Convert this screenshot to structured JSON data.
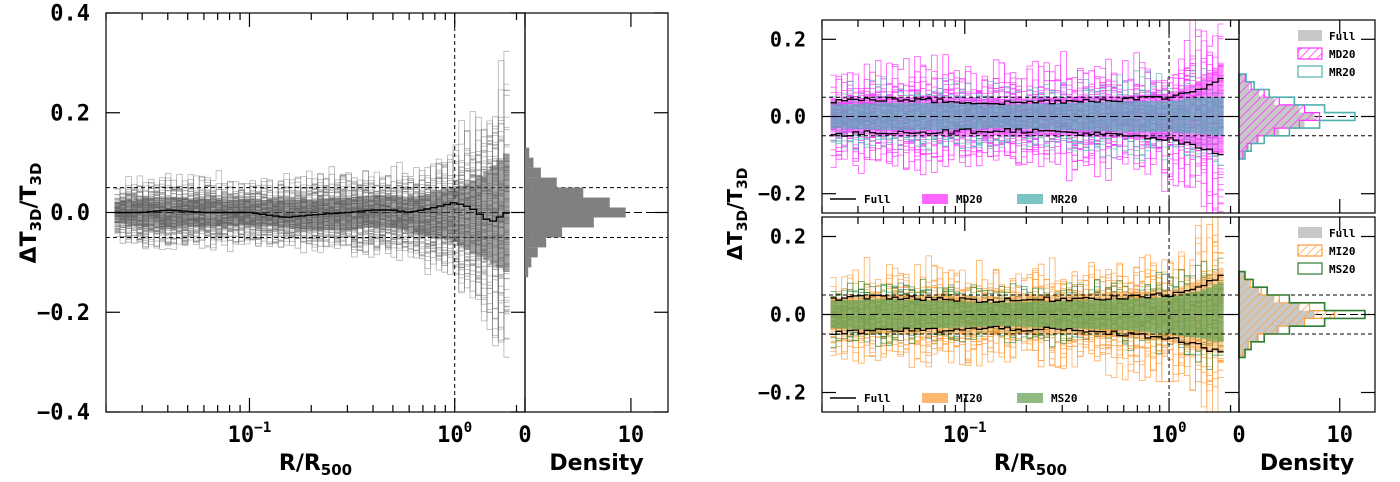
{
  "colors": {
    "full": "#808080",
    "full_hist": "#c8c8c8",
    "md20": "#ff33ff",
    "mr20": "#4fb0b0",
    "mi20": "#ffa040",
    "ms20": "#2e7d32",
    "ms20_fill": "#6aa45a"
  },
  "chart_data": [
    {
      "id": "left",
      "type": "line",
      "xscale": "log",
      "xlim": [
        0.02,
        2.2
      ],
      "ylim": [
        -0.4,
        0.4
      ],
      "ylabel": "ΔT3D/T3D",
      "xlabel": "R/R500",
      "yticks": [
        "0.4",
        "0.2",
        "0.0",
        "−0.2",
        "−0.4"
      ],
      "xticks": [
        {
          "base": "10",
          "exp": "−1"
        },
        {
          "base": "10",
          "exp": "0"
        }
      ],
      "hlines": [
        0.05,
        -0.05
      ],
      "vline": 1.0,
      "series": [
        {
          "x": [
            0.022,
            0.03,
            0.04,
            0.06,
            0.08,
            0.1,
            0.15,
            0.2,
            0.3,
            0.4,
            0.5,
            0.6,
            0.8,
            1.0,
            1.2,
            1.5,
            1.8
          ],
          "median": [
            0.0,
            0.0,
            0.005,
            0.0,
            0.0,
            0.0,
            -0.01,
            -0.005,
            0.0,
            0.005,
            0.005,
            0.0,
            0.01,
            0.02,
            0.01,
            -0.02,
            0.0
          ],
          "upper": [
            0.02,
            0.03,
            0.03,
            0.028,
            0.026,
            0.026,
            0.024,
            0.026,
            0.03,
            0.035,
            0.035,
            0.03,
            0.04,
            0.05,
            0.06,
            0.09,
            0.12
          ],
          "lower": [
            -0.02,
            -0.03,
            -0.03,
            -0.028,
            -0.026,
            -0.026,
            -0.03,
            -0.035,
            -0.035,
            -0.03,
            -0.03,
            -0.04,
            -0.05,
            -0.06,
            -0.08,
            -0.1,
            -0.12
          ]
        }
      ],
      "density": {
        "xlabel": "Density",
        "xlim": [
          0,
          13.5
        ],
        "xticks": [
          "0",
          "10"
        ],
        "bins": [
          -0.13,
          -0.11,
          -0.09,
          -0.07,
          -0.05,
          -0.03,
          -0.01,
          0.01,
          0.03,
          0.05,
          0.07,
          0.09,
          0.11,
          0.13
        ],
        "values": [
          0.3,
          0.6,
          1.2,
          2.0,
          3.5,
          6.5,
          9.5,
          8.0,
          5.5,
          3.0,
          1.5,
          0.8,
          0.4
        ]
      }
    },
    {
      "id": "right-top",
      "type": "line",
      "xscale": "log",
      "xlim": [
        0.02,
        2.2
      ],
      "ylim": [
        -0.25,
        0.25
      ],
      "ylabel": "ΔT3D/T3D",
      "yticks": [
        "0.2",
        "0.0",
        "−0.2"
      ],
      "hlines": [
        0.05,
        -0.05
      ],
      "vline": 1.0,
      "bottom_legend": [
        "Full",
        "MD20",
        "MR20"
      ],
      "hist_legend": [
        "Full",
        "MD20",
        "MR20"
      ],
      "series": [
        {
          "name": "MD20",
          "x": [
            0.022,
            0.04,
            0.08,
            0.15,
            0.3,
            0.6,
            1.0,
            1.4,
            1.8
          ],
          "upper": [
            0.04,
            0.05,
            0.05,
            0.045,
            0.05,
            0.055,
            0.06,
            0.09,
            0.14
          ],
          "lower": [
            -0.04,
            -0.05,
            -0.05,
            -0.05,
            -0.05,
            -0.055,
            -0.06,
            -0.08,
            -0.1
          ]
        },
        {
          "name": "MR20",
          "x": [
            0.022,
            0.04,
            0.08,
            0.15,
            0.3,
            0.6,
            1.0,
            1.4,
            1.8
          ],
          "upper": [
            0.03,
            0.035,
            0.035,
            0.03,
            0.035,
            0.04,
            0.04,
            0.05,
            0.05
          ],
          "lower": [
            -0.03,
            -0.035,
            -0.035,
            -0.03,
            -0.035,
            -0.04,
            -0.04,
            -0.045,
            -0.05
          ]
        },
        {
          "name": "Full",
          "x": [
            0.022,
            0.04,
            0.08,
            0.15,
            0.3,
            0.6,
            1.0,
            1.4,
            1.8
          ],
          "upper": [
            0.04,
            0.045,
            0.04,
            0.035,
            0.04,
            0.045,
            0.05,
            0.07,
            0.1
          ],
          "lower": [
            -0.05,
            -0.04,
            -0.04,
            -0.035,
            -0.04,
            -0.05,
            -0.06,
            -0.08,
            -0.1
          ]
        }
      ],
      "density": {
        "xlim": [
          0,
          13.5
        ],
        "bins": [
          -0.11,
          -0.09,
          -0.07,
          -0.05,
          -0.03,
          -0.01,
          0.01,
          0.03,
          0.05,
          0.07,
          0.09,
          0.11
        ],
        "full": [
          0.5,
          1.0,
          2.0,
          4.0,
          6.5,
          7.5,
          6.0,
          3.5,
          2.0,
          1.0,
          0.5
        ],
        "md20": [
          0.4,
          0.8,
          1.8,
          3.5,
          6.0,
          8.0,
          6.5,
          4.0,
          2.5,
          1.2,
          0.6
        ],
        "mr20": [
          0.6,
          1.2,
          2.5,
          5.0,
          8.0,
          11.5,
          8.5,
          5.5,
          3.0,
          1.5,
          0.7
        ]
      }
    },
    {
      "id": "right-bottom",
      "type": "line",
      "xscale": "log",
      "xlim": [
        0.02,
        2.2
      ],
      "ylim": [
        -0.25,
        0.25
      ],
      "yticks": [
        "0.2",
        "0.0",
        "−0.2"
      ],
      "xlabel": "R/R500",
      "xticks": [
        {
          "base": "10",
          "exp": "−1"
        },
        {
          "base": "10",
          "exp": "0"
        }
      ],
      "hlines": [
        0.05,
        -0.05
      ],
      "vline": 1.0,
      "bottom_legend": [
        "Full",
        "MI20",
        "MS20"
      ],
      "hist_legend": [
        "Full",
        "MI20",
        "MS20"
      ],
      "series": [
        {
          "name": "MI20",
          "x": [
            0.022,
            0.04,
            0.08,
            0.15,
            0.3,
            0.6,
            1.0,
            1.4,
            1.8
          ],
          "upper": [
            0.04,
            0.05,
            0.05,
            0.045,
            0.05,
            0.06,
            0.06,
            0.09,
            0.12
          ],
          "lower": [
            -0.04,
            -0.05,
            -0.05,
            -0.05,
            -0.05,
            -0.06,
            -0.07,
            -0.09,
            -0.1
          ]
        },
        {
          "name": "MS20",
          "x": [
            0.022,
            0.04,
            0.08,
            0.15,
            0.3,
            0.6,
            1.0,
            1.4,
            1.8
          ],
          "upper": [
            0.035,
            0.04,
            0.035,
            0.03,
            0.035,
            0.04,
            0.045,
            0.06,
            0.08
          ],
          "lower": [
            -0.035,
            -0.04,
            -0.035,
            -0.03,
            -0.035,
            -0.04,
            -0.05,
            -0.06,
            -0.07
          ]
        },
        {
          "name": "Full",
          "x": [
            0.022,
            0.04,
            0.08,
            0.15,
            0.3,
            0.6,
            1.0,
            1.4,
            1.8
          ],
          "upper": [
            0.04,
            0.045,
            0.04,
            0.035,
            0.04,
            0.045,
            0.05,
            0.07,
            0.1
          ],
          "lower": [
            -0.05,
            -0.04,
            -0.04,
            -0.035,
            -0.04,
            -0.05,
            -0.06,
            -0.08,
            -0.1
          ]
        }
      ],
      "density": {
        "xlabel": "Density",
        "xlim": [
          0,
          13.5
        ],
        "xticks": [
          "0",
          "10"
        ],
        "bins": [
          -0.11,
          -0.09,
          -0.07,
          -0.05,
          -0.03,
          -0.01,
          0.01,
          0.03,
          0.05,
          0.07,
          0.09,
          0.11
        ],
        "full": [
          0.5,
          1.0,
          2.0,
          4.0,
          6.5,
          7.5,
          6.0,
          3.5,
          2.0,
          1.0,
          0.5
        ],
        "mi20": [
          0.4,
          0.9,
          1.8,
          3.8,
          6.5,
          9.5,
          7.0,
          4.0,
          2.2,
          1.1,
          0.5
        ],
        "ms20": [
          0.6,
          1.2,
          2.5,
          5.0,
          8.5,
          12.5,
          8.5,
          5.0,
          2.8,
          1.4,
          0.6
        ]
      }
    }
  ]
}
